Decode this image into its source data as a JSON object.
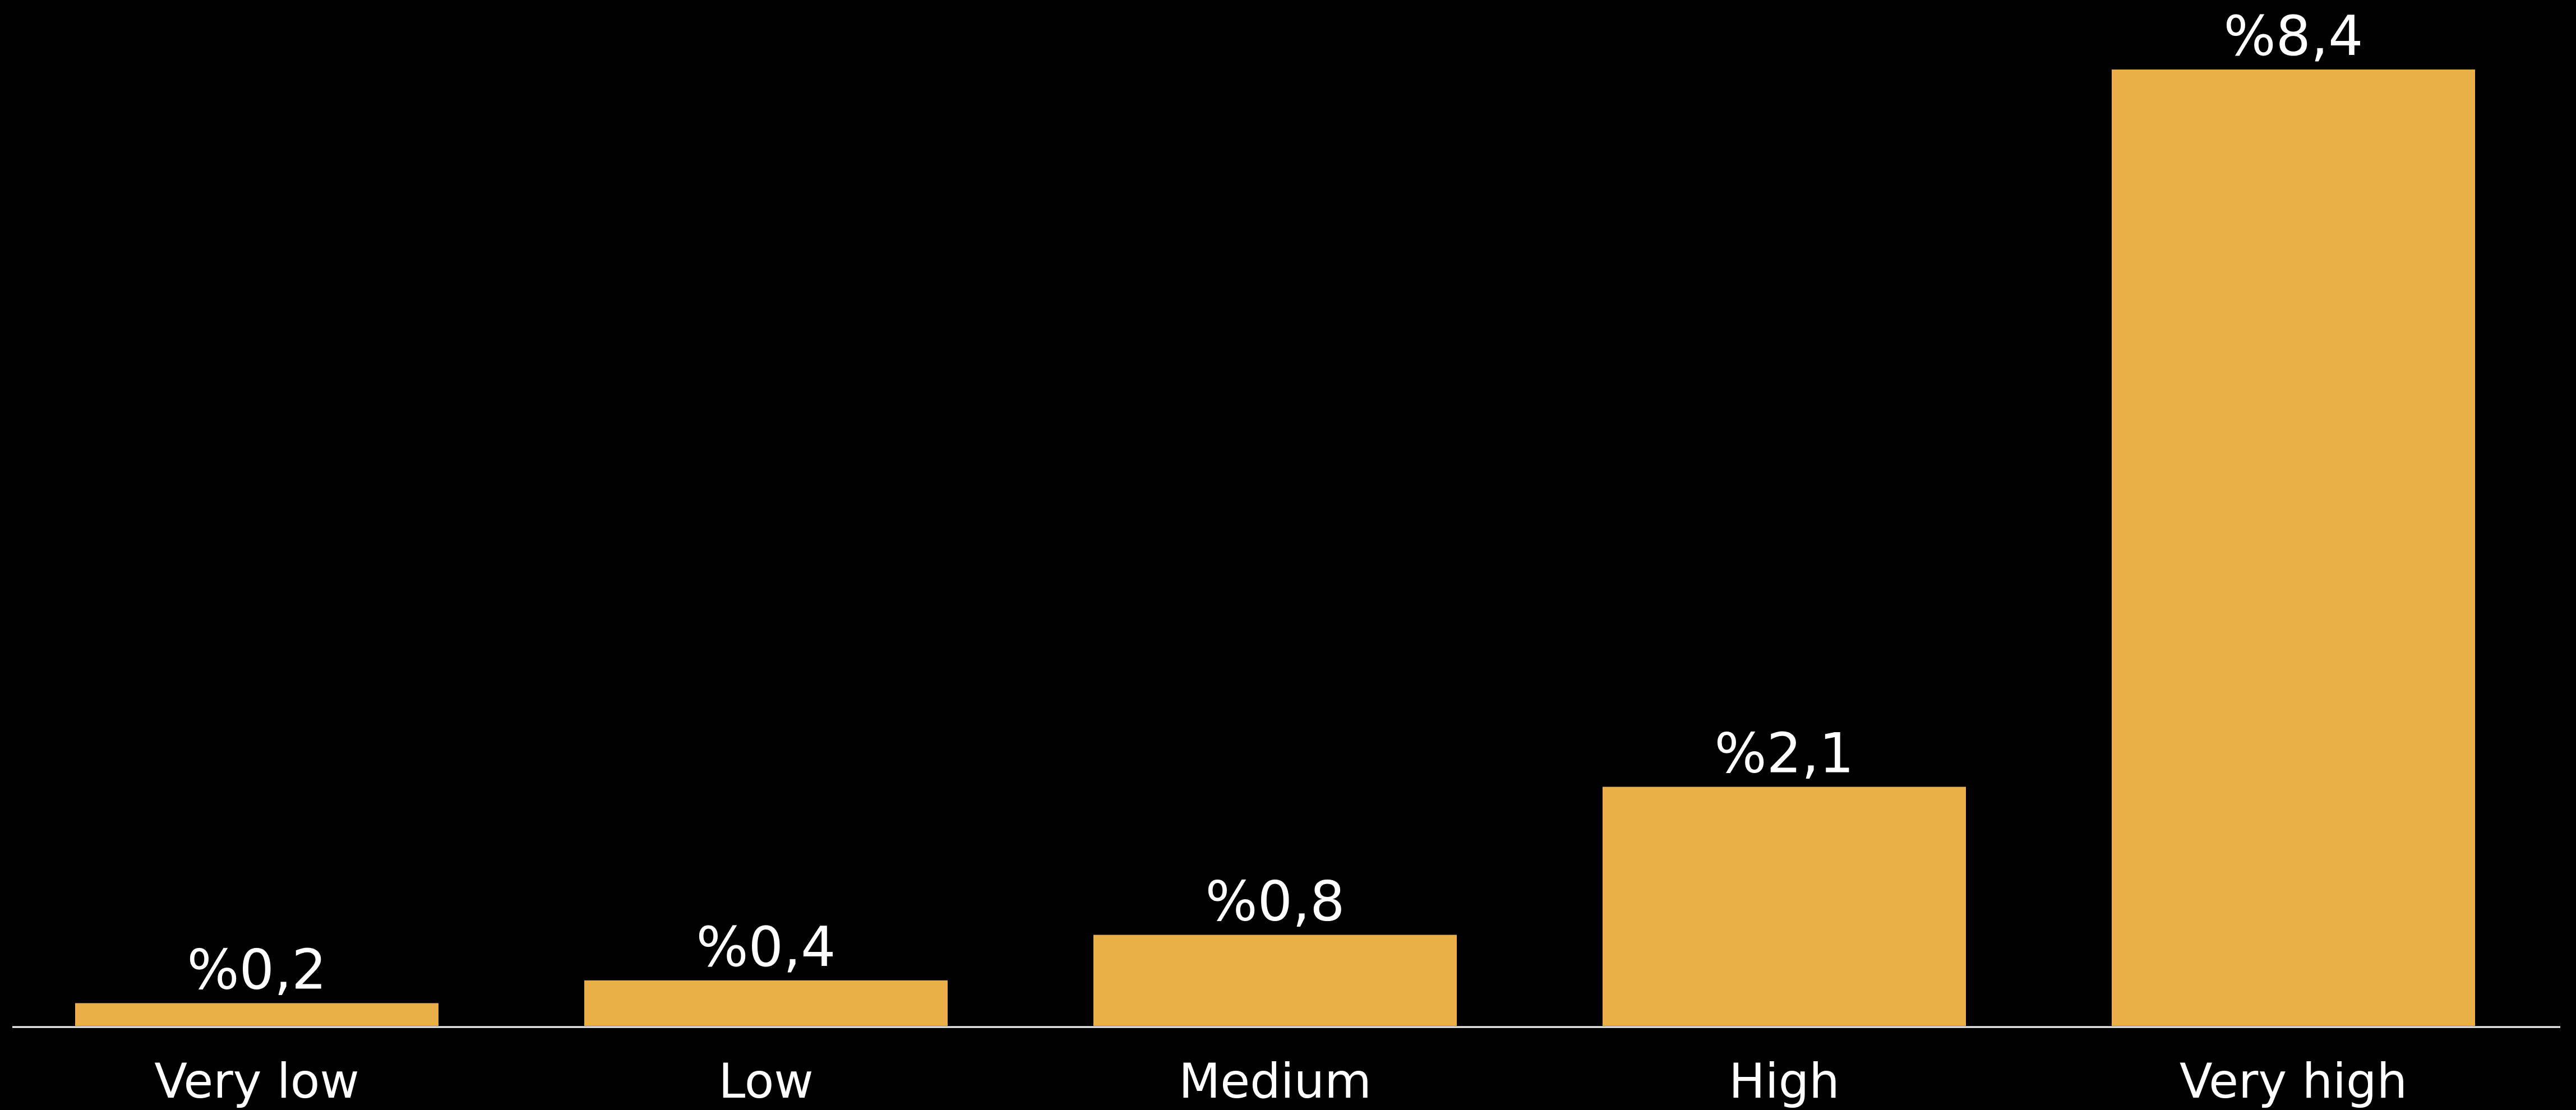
{
  "chart_data": {
    "type": "bar",
    "categories": [
      "Very low",
      "Low",
      "Medium",
      "High",
      "Very high"
    ],
    "values": [
      0.2,
      0.4,
      0.8,
      2.1,
      8.4
    ],
    "value_labels": [
      "%0,2",
      "%0,4",
      "%0,8",
      "%2,1",
      "%8,4"
    ],
    "ylim": [
      0,
      8.4
    ],
    "grid": false,
    "colors": {
      "background": "#000000",
      "bar": "#EBAF4A",
      "axis": "#FFFFFF",
      "text": "#FFFFFF"
    }
  }
}
